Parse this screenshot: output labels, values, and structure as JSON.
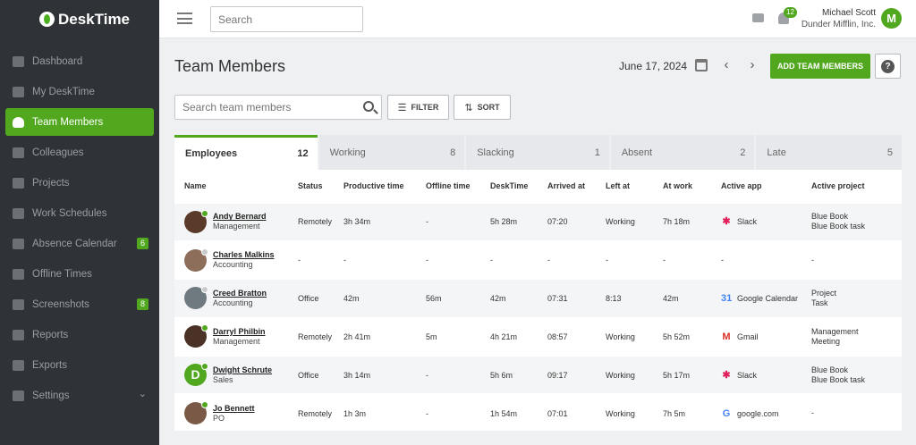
{
  "app": {
    "name": "DeskTime"
  },
  "colors": {
    "brand": "#51a81f",
    "sidebar": "#2f3236",
    "online": "#51a81f",
    "offline": "#c8cacd"
  },
  "sidebar": {
    "items": [
      {
        "label": "Dashboard",
        "icon": "bar-chart-icon",
        "active": false,
        "badge": ""
      },
      {
        "label": "My DeskTime",
        "icon": "monitor-icon",
        "active": false,
        "badge": ""
      },
      {
        "label": "Team Members",
        "icon": "users-icon",
        "active": true,
        "badge": ""
      },
      {
        "label": "Colleagues",
        "icon": "user-circle-icon",
        "active": false,
        "badge": ""
      },
      {
        "label": "Projects",
        "icon": "folder-icon",
        "active": false,
        "badge": ""
      },
      {
        "label": "Work Schedules",
        "icon": "briefcase-icon",
        "active": false,
        "badge": ""
      },
      {
        "label": "Absence Calendar",
        "icon": "calendar-icon",
        "active": false,
        "badge": "6"
      },
      {
        "label": "Offline Times",
        "icon": "clock-icon",
        "active": false,
        "badge": ""
      },
      {
        "label": "Screenshots",
        "icon": "image-icon",
        "active": false,
        "badge": "8"
      },
      {
        "label": "Reports",
        "icon": "pie-chart-icon",
        "active": false,
        "badge": ""
      },
      {
        "label": "Exports",
        "icon": "export-icon",
        "active": false,
        "badge": ""
      },
      {
        "label": "Settings",
        "icon": "gear-icon",
        "active": false,
        "badge": "",
        "chevron": "⌄"
      }
    ]
  },
  "topbar": {
    "search_placeholder": "Search",
    "notification_count": "12",
    "user_name": "Michael Scott",
    "company": "Dunder Mifflin, Inc.",
    "avatar_letter": "M"
  },
  "main": {
    "title": "Team Members",
    "date": "June 17, 2024",
    "add_button": "ADD TEAM MEMBERS",
    "help": "?",
    "search_placeholder": "Search team members",
    "filter_label": "FILTER",
    "sort_label": "SORT",
    "prev": "‹",
    "next": "›"
  },
  "tabs": [
    {
      "label": "Employees",
      "count": "12",
      "active": true
    },
    {
      "label": "Working",
      "count": "8",
      "active": false
    },
    {
      "label": "Slacking",
      "count": "1",
      "active": false
    },
    {
      "label": "Absent",
      "count": "2",
      "active": false
    },
    {
      "label": "Late",
      "count": "5",
      "active": false
    }
  ],
  "table": {
    "columns": [
      "Name",
      "Status",
      "Productive time",
      "Offline time",
      "DeskTime",
      "Arrived at",
      "Left at",
      "At work",
      "Active app",
      "Active project"
    ],
    "rows": [
      {
        "name": "Andy Bernard",
        "dept": "Management",
        "online": true,
        "avatar_color": "#5a3b2a",
        "avatar_letter": "",
        "status": "Remotely",
        "productive": "3h 34m",
        "offline": "-",
        "desktime": "5h 28m",
        "arrived": "07:20",
        "left": "Working",
        "atwork": "7h 18m",
        "app": "Slack",
        "app_icon": "slack-icon",
        "app_glyph": "✱",
        "app_color": "#e01e5a",
        "project": [
          "Blue Book",
          "Blue Book task"
        ]
      },
      {
        "name": "Charles Malkins",
        "dept": "Accounting",
        "online": false,
        "avatar_color": "#8c6e5a",
        "avatar_letter": "",
        "status": "-",
        "productive": "-",
        "offline": "-",
        "desktime": "-",
        "arrived": "-",
        "left": "-",
        "atwork": "-",
        "app": "-",
        "app_icon": "",
        "app_glyph": "",
        "app_color": "",
        "project": [
          "-"
        ]
      },
      {
        "name": "Creed Bratton",
        "dept": "Accounting",
        "online": false,
        "avatar_color": "#6f7a80",
        "avatar_letter": "",
        "status": "Office",
        "productive": "42m",
        "offline": "56m",
        "desktime": "42m",
        "arrived": "07:31",
        "left": "8:13",
        "atwork": "42m",
        "app": "Google Calendar",
        "app_icon": "google-calendar-icon",
        "app_glyph": "31",
        "app_color": "#4285f4",
        "project": [
          "Project",
          "Task"
        ]
      },
      {
        "name": "Darryl Philbin",
        "dept": "Management",
        "online": true,
        "avatar_color": "#4a3326",
        "avatar_letter": "",
        "status": "Remotely",
        "productive": "2h 41m",
        "offline": "5m",
        "desktime": "4h 21m",
        "arrived": "08:57",
        "left": "Working",
        "atwork": "5h 52m",
        "app": "Gmail",
        "app_icon": "gmail-icon",
        "app_glyph": "M",
        "app_color": "#d93025",
        "project": [
          "Management",
          "Meeting"
        ]
      },
      {
        "name": "Dwight Schrute",
        "dept": "Sales",
        "online": true,
        "avatar_color": "#51a81f",
        "avatar_letter": "D",
        "status": "Office",
        "productive": "3h 14m",
        "offline": "-",
        "desktime": "5h 6m",
        "arrived": "09:17",
        "left": "Working",
        "atwork": "5h 17m",
        "app": "Slack",
        "app_icon": "slack-icon",
        "app_glyph": "✱",
        "app_color": "#e01e5a",
        "project": [
          "Blue Book",
          "Blue Book task"
        ]
      },
      {
        "name": "Jo Bennett",
        "dept": "PO",
        "online": true,
        "avatar_color": "#7a5a46",
        "avatar_letter": "",
        "status": "Remotely",
        "productive": "1h 3m",
        "offline": "-",
        "desktime": "1h 54m",
        "arrived": "07:01",
        "left": "Working",
        "atwork": "7h 5m",
        "app": "google.com",
        "app_icon": "google-icon",
        "app_glyph": "G",
        "app_color": "#4285f4",
        "project": [
          "-"
        ]
      }
    ]
  }
}
